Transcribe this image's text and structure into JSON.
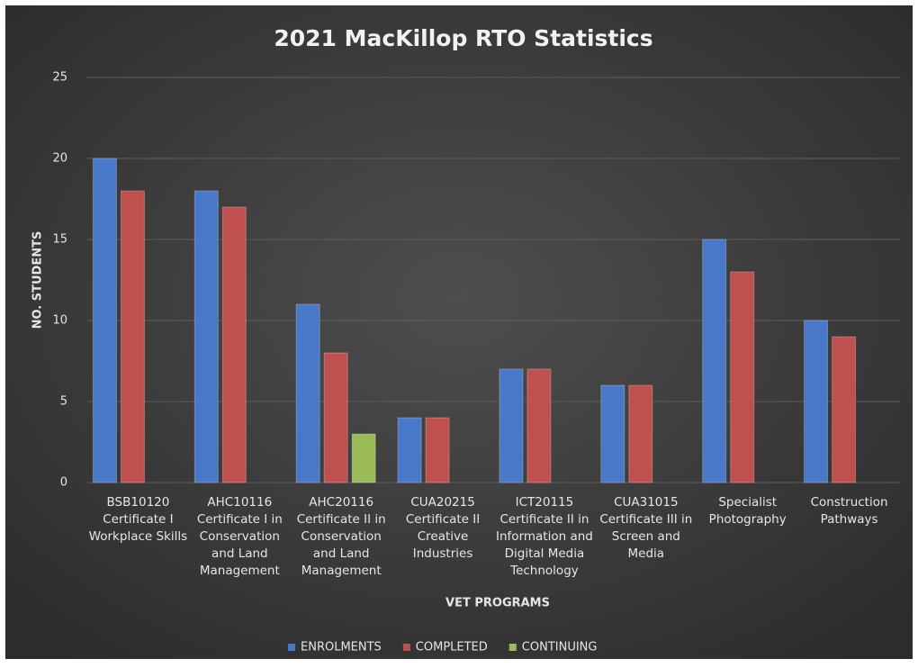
{
  "chart_data": {
    "type": "bar",
    "title": "2021 MacKillop RTO Statistics",
    "x_label": "VET PROGRAMS",
    "y_label": "NO. STUDENTS",
    "categories": [
      "BSB10120\nCertificate I\nWorkplace Skills",
      "AHC10116\nCertificate I in\nConservation\nand Land\nManagement",
      "AHC20116\nCertificate II in\nConservation\nand Land\nManagement",
      "CUA20215\nCertificate II\nCreative\nIndustries",
      "ICT20115\nCertificate II in\nInformation and\nDigital Media\nTechnology",
      "CUA31015\nCertificate III in\nScreen and\nMedia",
      "Specialist\nPhotography",
      "Construction\nPathways"
    ],
    "series": [
      {
        "name": "ENROLMENTS",
        "color": "#4a78c8",
        "values": [
          20,
          18,
          11,
          4,
          7,
          6,
          15,
          10
        ]
      },
      {
        "name": "COMPLETED",
        "color": "#c0504d",
        "values": [
          18,
          17,
          8,
          4,
          7,
          6,
          13,
          9
        ]
      },
      {
        "name": "CONTINUING",
        "color": "#9bbb59",
        "values": [
          null,
          null,
          3,
          null,
          null,
          null,
          null,
          null
        ]
      }
    ],
    "ylim": [
      0,
      25
    ],
    "yticks": [
      0,
      5,
      10,
      15,
      20,
      25
    ],
    "grid": true,
    "legend": "bottom"
  }
}
